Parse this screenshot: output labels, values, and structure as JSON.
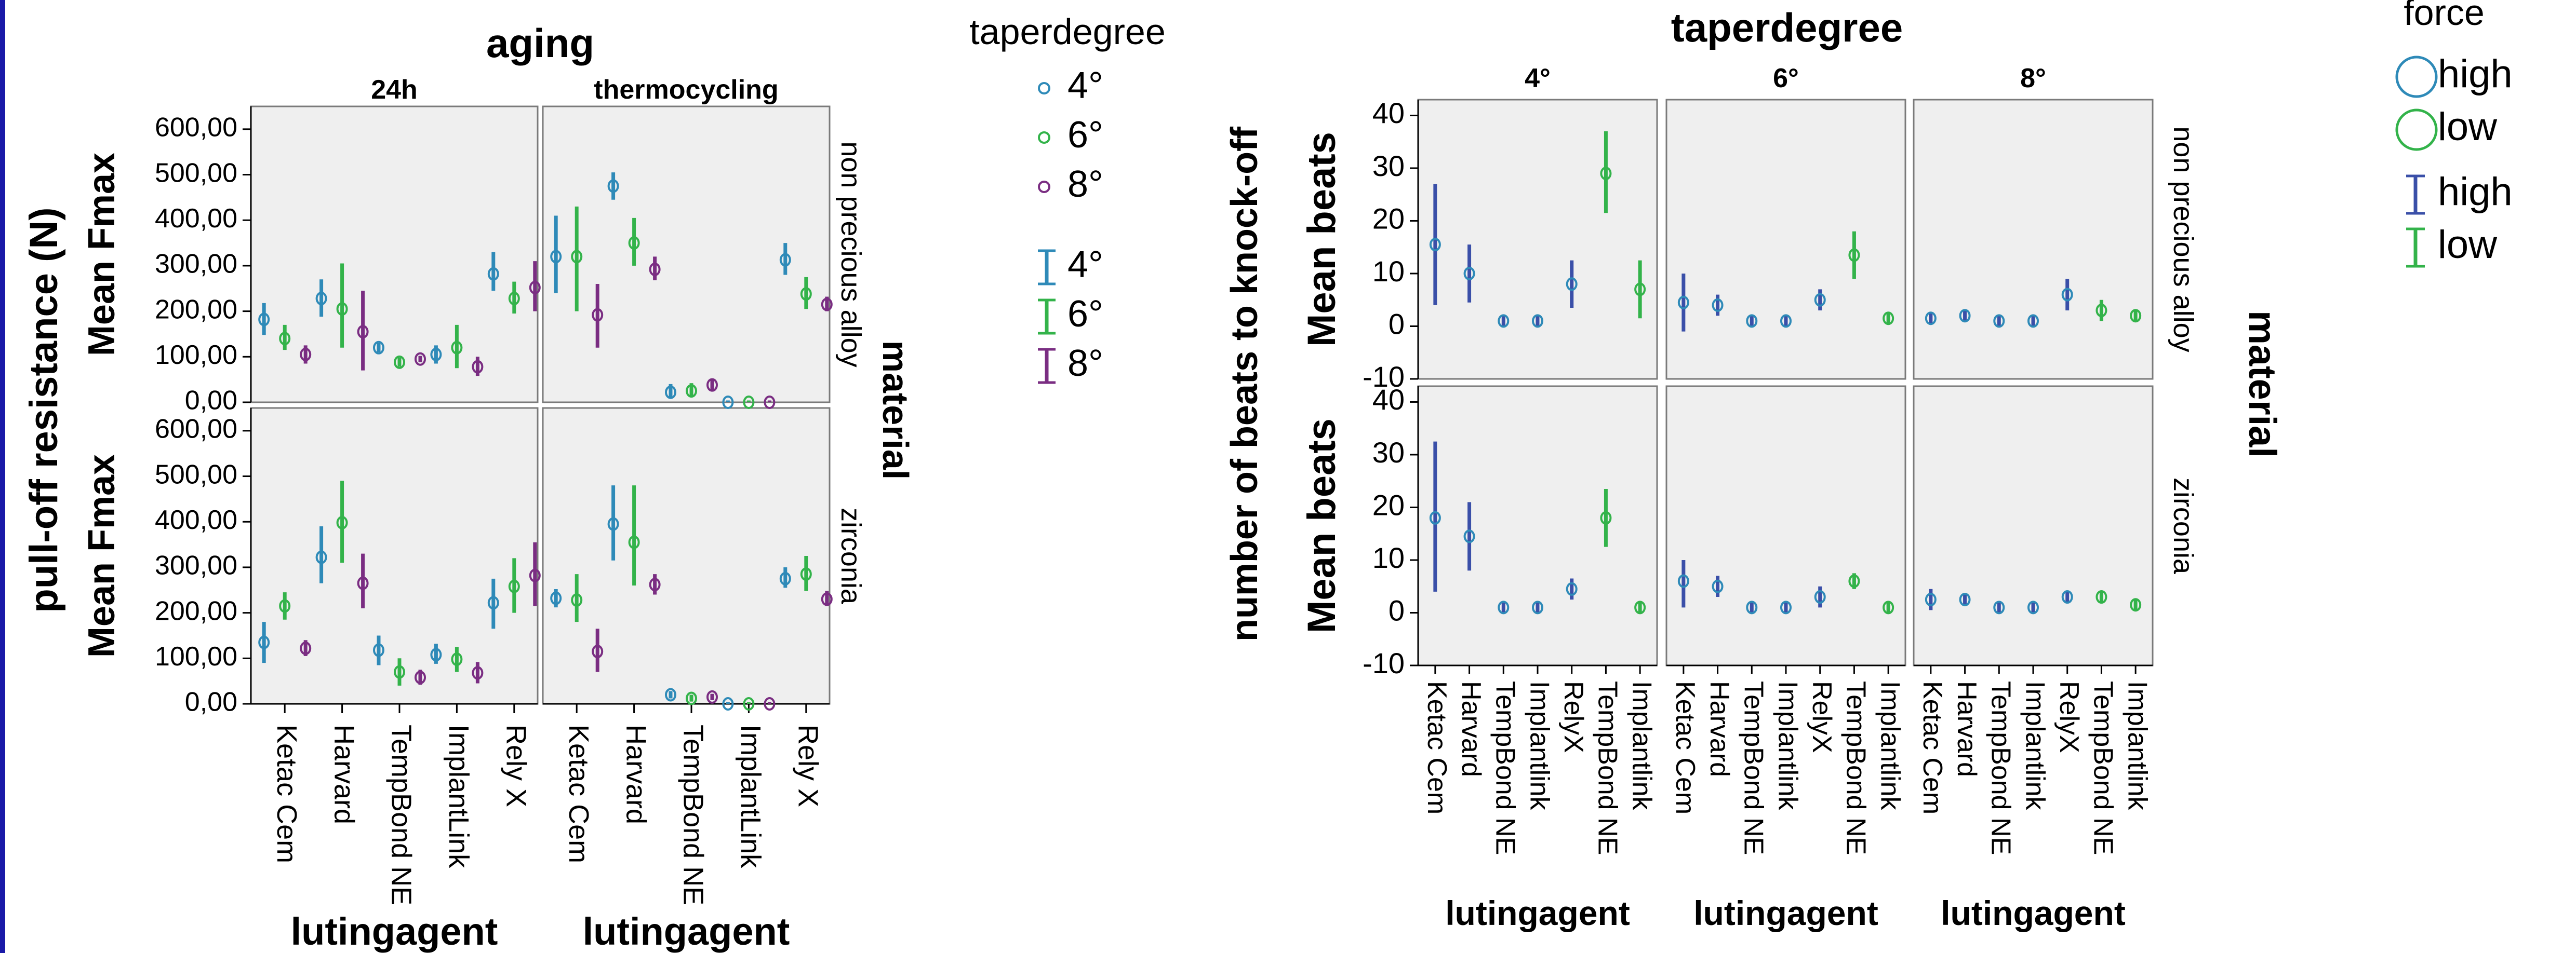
{
  "chart_data": [
    {
      "type": "scatter",
      "figure_title": "aging",
      "facet_cols": [
        "24h",
        "thermocycling"
      ],
      "facet_rows": [
        "non precious alloy",
        "zirconia"
      ],
      "row_strip_title": "material",
      "ylabel_outer": "pull-off resistance (N)",
      "ylabel_panel": "Mean Fmax",
      "xlabel": "lutingagent",
      "categories": [
        "Ketac Cem",
        "Harvard",
        "TempBond NE",
        "ImplantLink",
        "Rely X"
      ],
      "yticks": [
        "0,00",
        "100,00",
        "200,00",
        "300,00",
        "400,00",
        "500,00",
        "600,00"
      ],
      "ylim": [
        0,
        650
      ],
      "legend": {
        "title": "taperdegree",
        "point_labels": [
          "4°",
          "6°",
          "8°"
        ],
        "bar_labels": [
          "4°",
          "6°",
          "8°"
        ]
      },
      "series": [
        {
          "name": "4°",
          "color": "#2e8ab8"
        },
        {
          "name": "6°",
          "color": "#33b34a"
        },
        {
          "name": "8°",
          "color": "#7a2d82"
        }
      ],
      "panels": [
        {
          "row": 0,
          "col": 0,
          "points": [
            [
              [
                182,
                148,
                218
              ],
              [
                228,
                188,
                270
              ],
              [
                120,
                110,
                130
              ],
              [
                105,
                85,
                125
              ],
              [
                282,
                245,
                330
              ]
            ],
            [
              [
                140,
                115,
                170
              ],
              [
                205,
                120,
                305
              ],
              [
                88,
                78,
                98
              ],
              [
                120,
                75,
                170
              ],
              [
                228,
                195,
                265
              ]
            ],
            [
              [
                105,
                85,
                125
              ],
              [
                155,
                70,
                245
              ],
              [
                95,
                88,
                102
              ],
              [
                78,
                58,
                100
              ],
              [
                252,
                200,
                310
              ]
            ]
          ]
        },
        {
          "row": 0,
          "col": 1,
          "points": [
            [
              [
                320,
                240,
                410
              ],
              [
                475,
                445,
                505
              ],
              [
                22,
                8,
                40
              ],
              [
                0,
                0,
                4
              ],
              [
                313,
                280,
                350
              ]
            ],
            [
              [
                320,
                200,
                430
              ],
              [
                350,
                300,
                405
              ],
              [
                25,
                12,
                42
              ],
              [
                0,
                0,
                4
              ],
              [
                238,
                205,
                275
              ]
            ],
            [
              [
                192,
                120,
                260
              ],
              [
                292,
                268,
                320
              ],
              [
                38,
                26,
                50
              ],
              [
                0,
                0,
                4
              ],
              [
                215,
                200,
                232
              ]
            ]
          ]
        },
        {
          "row": 1,
          "col": 0,
          "points": [
            [
              [
                135,
                90,
                180
              ],
              [
                322,
                265,
                390
              ],
              [
                118,
                85,
                150
              ],
              [
                108,
                88,
                132
              ],
              [
                222,
                165,
                275
              ]
            ],
            [
              [
                215,
                185,
                245
              ],
              [
                398,
                310,
                490
              ],
              [
                70,
                40,
                100
              ],
              [
                98,
                70,
                125
              ],
              [
                258,
                200,
                320
              ]
            ],
            [
              [
                122,
                105,
                140
              ],
              [
                265,
                210,
                330
              ],
              [
                58,
                42,
                75
              ],
              [
                68,
                45,
                92
              ],
              [
                282,
                215,
                355
              ]
            ]
          ]
        },
        {
          "row": 1,
          "col": 1,
          "points": [
            [
              [
                232,
                212,
                252
              ],
              [
                395,
                315,
                480
              ],
              [
                20,
                12,
                28
              ],
              [
                0,
                0,
                4
              ],
              [
                275,
                255,
                300
              ]
            ],
            [
              [
                228,
                180,
                285
              ],
              [
                355,
                260,
                480
              ],
              [
                12,
                5,
                20
              ],
              [
                0,
                0,
                4
              ],
              [
                285,
                248,
                325
              ]
            ],
            [
              [
                115,
                70,
                165
              ],
              [
                262,
                240,
                285
              ],
              [
                15,
                8,
                22
              ],
              [
                0,
                0,
                4
              ],
              [
                230,
                215,
                248
              ]
            ]
          ]
        }
      ]
    },
    {
      "type": "scatter",
      "figure_title": "taperdegree",
      "facet_cols": [
        "4°",
        "6°",
        "8°"
      ],
      "facet_rows": [
        "non precious alloy",
        "zirconia"
      ],
      "row_strip_title": "material",
      "ylabel_outer": "number of beats to knock-off",
      "ylabel_panel": "Mean beats",
      "xlabel": "lutingagent",
      "categories": [
        "Ketac Cem",
        "Harvard",
        "TempBond NE",
        "Implantlink",
        "RelyX",
        "TempBond NE",
        "Implantlink"
      ],
      "category_force": [
        "high",
        "high",
        "high",
        "high",
        "high",
        "low",
        "low"
      ],
      "yticks": [
        "-10",
        "0",
        "10",
        "20",
        "30",
        "40"
      ],
      "ylim": [
        -10,
        43
      ],
      "legend": {
        "title": "force",
        "point_labels": [
          "high",
          "low"
        ],
        "bar_labels": [
          "high",
          "low"
        ]
      },
      "series": [
        {
          "name": "high",
          "color": "#2e8ab8",
          "bar_color": "#3a4fa8"
        },
        {
          "name": "low",
          "color": "#33b34a",
          "bar_color": "#33b34a"
        }
      ],
      "panels": [
        {
          "row": 0,
          "col": 0,
          "points": [
            [
              15.5,
              4,
              27
            ],
            [
              10,
              4.5,
              15.5
            ],
            [
              1,
              0,
              2
            ],
            [
              1,
              0,
              2
            ],
            [
              8,
              3.5,
              12.5
            ],
            [
              29,
              21.5,
              37
            ],
            [
              7,
              1.5,
              12.5
            ]
          ]
        },
        {
          "row": 0,
          "col": 1,
          "points": [
            [
              4.5,
              -1,
              10
            ],
            [
              4,
              2,
              6
            ],
            [
              1,
              0,
              2
            ],
            [
              1,
              0,
              2
            ],
            [
              5,
              3,
              7
            ],
            [
              13.5,
              9,
              18
            ],
            [
              1.5,
              0.5,
              2.5
            ]
          ]
        },
        {
          "row": 0,
          "col": 2,
          "points": [
            [
              1.5,
              0.5,
              2.5
            ],
            [
              2,
              1,
              3
            ],
            [
              1,
              0,
              2
            ],
            [
              1,
              0,
              2
            ],
            [
              6,
              3,
              9
            ],
            [
              3,
              1,
              5
            ],
            [
              2,
              1,
              3
            ]
          ]
        },
        {
          "row": 1,
          "col": 0,
          "points": [
            [
              18,
              4,
              32.5
            ],
            [
              14.5,
              8,
              21
            ],
            [
              1,
              0,
              2
            ],
            [
              1,
              0,
              2
            ],
            [
              4.5,
              2.5,
              6.5
            ],
            [
              18,
              12.5,
              23.5
            ],
            [
              1,
              0,
              2
            ]
          ]
        },
        {
          "row": 1,
          "col": 1,
          "points": [
            [
              6,
              1,
              10
            ],
            [
              5,
              3,
              7
            ],
            [
              1,
              0,
              2
            ],
            [
              1,
              0,
              2
            ],
            [
              3,
              1,
              5
            ],
            [
              6,
              4.5,
              7.5
            ],
            [
              1,
              0,
              2
            ]
          ]
        },
        {
          "row": 1,
          "col": 2,
          "points": [
            [
              2.5,
              0.5,
              4.5
            ],
            [
              2.5,
              1.5,
              3.5
            ],
            [
              1,
              0,
              2
            ],
            [
              1,
              0,
              2
            ],
            [
              3,
              2,
              4
            ],
            [
              3,
              2,
              4
            ],
            [
              1.5,
              0.5,
              2.5
            ]
          ]
        }
      ]
    }
  ]
}
